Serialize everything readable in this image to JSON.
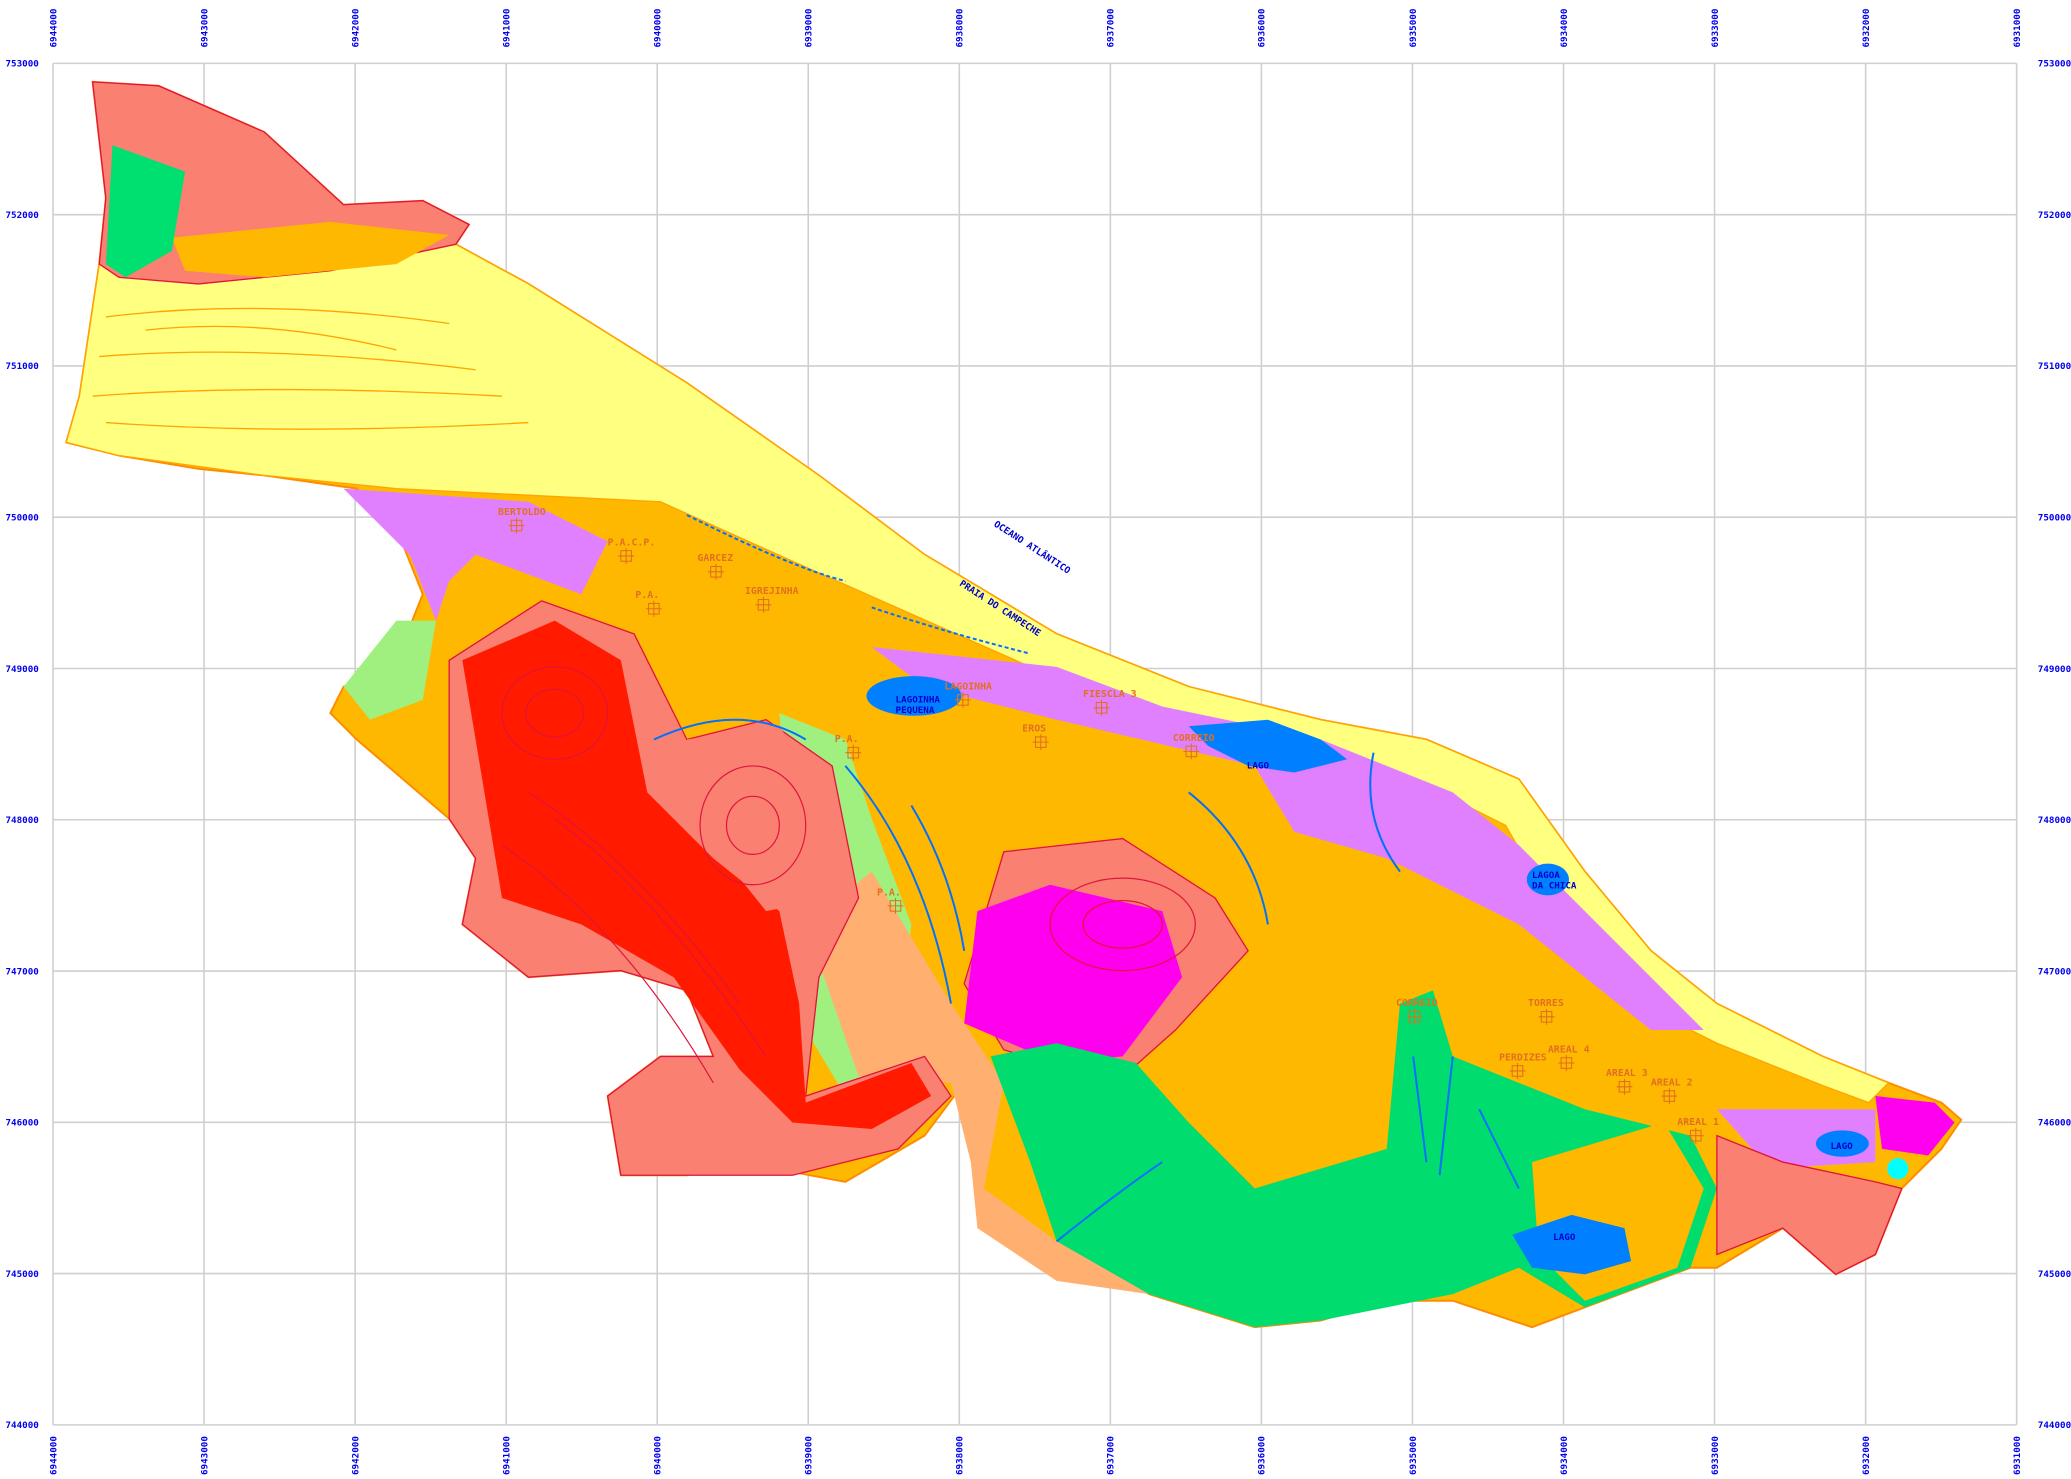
{
  "x_axis_labels": [
    "6944000",
    "6943000",
    "6942000",
    "6941000",
    "6940000",
    "6939000",
    "6938000",
    "6937000",
    "6936000",
    "6935000",
    "6934000",
    "6933000",
    "6932000",
    "6931000"
  ],
  "y_axis_labels": [
    "753000",
    "752000",
    "751000",
    "750000",
    "749000",
    "748000",
    "747000",
    "746000",
    "745000",
    "744000"
  ],
  "sea_labels": [
    "OCEANO   ATLÂNTICO",
    "PRAIA DO CAMPECHE"
  ],
  "places": [
    {
      "label": "BERTOLDO"
    },
    {
      "label": "P.A.C.P."
    },
    {
      "label": "P.A."
    },
    {
      "label": "GARCEZ"
    },
    {
      "label": "IGREJINHA"
    },
    {
      "label": "LAGOINHA"
    },
    {
      "label": "FIESCLA 3"
    },
    {
      "label": "EROS"
    },
    {
      "label": "CORREIO"
    },
    {
      "label": "P.A."
    },
    {
      "label": "P.A."
    },
    {
      "label": "TORRES"
    },
    {
      "label": "CORREIO"
    },
    {
      "label": "PERDIZES"
    },
    {
      "label": "AREAL 4"
    },
    {
      "label": "AREAL 3"
    },
    {
      "label": "AREAL 2"
    },
    {
      "label": "AREAL 1"
    }
  ],
  "water_labels": [
    {
      "lines": [
        "LAGOINHA",
        "PEQUENA"
      ]
    },
    {
      "lines": [
        "LAGO"
      ]
    },
    {
      "lines": [
        "LAGOA",
        "DA CHICA"
      ]
    },
    {
      "lines": [
        "LAGO"
      ]
    },
    {
      "lines": [
        "LAGO"
      ]
    }
  ]
}
